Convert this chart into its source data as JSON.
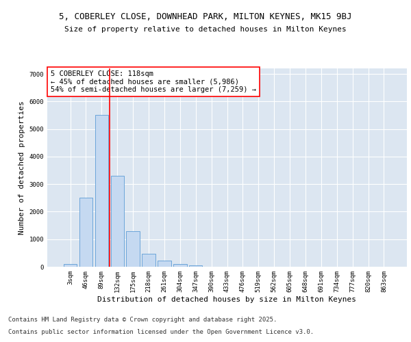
{
  "title_line1": "5, COBERLEY CLOSE, DOWNHEAD PARK, MILTON KEYNES, MK15 9BJ",
  "title_line2": "Size of property relative to detached houses in Milton Keynes",
  "xlabel": "Distribution of detached houses by size in Milton Keynes",
  "ylabel": "Number of detached properties",
  "categories": [
    "3sqm",
    "46sqm",
    "89sqm",
    "132sqm",
    "175sqm",
    "218sqm",
    "261sqm",
    "304sqm",
    "347sqm",
    "390sqm",
    "433sqm",
    "476sqm",
    "519sqm",
    "562sqm",
    "605sqm",
    "648sqm",
    "691sqm",
    "734sqm",
    "777sqm",
    "820sqm",
    "863sqm"
  ],
  "values": [
    100,
    2500,
    5500,
    3300,
    1300,
    480,
    230,
    100,
    60,
    0,
    0,
    0,
    0,
    0,
    0,
    0,
    0,
    0,
    0,
    0,
    0
  ],
  "bar_color": "#c5d9f1",
  "bar_edge_color": "#5b9bd5",
  "vline_color": "red",
  "annotation_text": "5 COBERLEY CLOSE: 118sqm\n← 45% of detached houses are smaller (5,986)\n54% of semi-detached houses are larger (7,259) →",
  "annotation_box_color": "white",
  "annotation_box_edge_color": "red",
  "ylim": [
    0,
    7200
  ],
  "yticks": [
    0,
    1000,
    2000,
    3000,
    4000,
    5000,
    6000,
    7000
  ],
  "background_color": "#dce6f1",
  "grid_color": "white",
  "footer_line1": "Contains HM Land Registry data © Crown copyright and database right 2025.",
  "footer_line2": "Contains public sector information licensed under the Open Government Licence v3.0.",
  "title1_fontsize": 9,
  "title2_fontsize": 8,
  "axis_label_fontsize": 8,
  "tick_fontsize": 6.5,
  "annotation_fontsize": 7.5,
  "footer_fontsize": 6.5
}
